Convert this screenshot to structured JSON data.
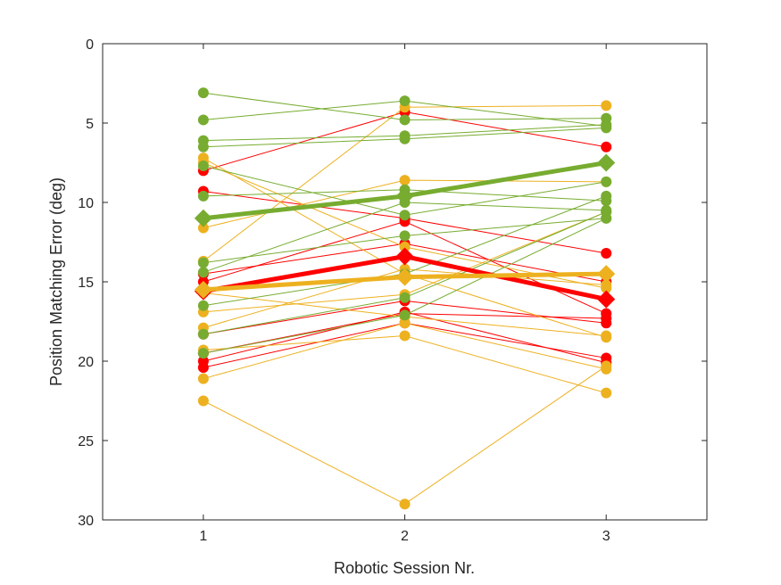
{
  "chart_data": {
    "type": "line",
    "title": "",
    "xlabel": "Robotic Session Nr.",
    "ylabel": "Position Matching Error (deg)",
    "xlim": [
      0.5,
      3.5
    ],
    "ylim": [
      0,
      30
    ],
    "y_reversed": true,
    "grid": false,
    "legend": "none",
    "x_ticks": [
      "1",
      "2",
      "3"
    ],
    "y_ticks": [
      "0",
      "5",
      "10",
      "15",
      "20",
      "25",
      "30"
    ],
    "x": [
      1,
      2,
      3
    ],
    "groups": [
      {
        "color": "#ff0000",
        "subjects": [
          [
            8.0,
            4.3,
            6.5
          ],
          [
            9.3,
            11.0,
            13.2
          ],
          [
            14.5,
            12.6,
            15.0
          ],
          [
            15.0,
            11.2,
            17.0
          ],
          [
            18.3,
            16.2,
            17.6
          ],
          [
            19.5,
            17.0,
            17.3
          ],
          [
            20.0,
            16.9,
            20.1
          ],
          [
            20.4,
            17.6,
            19.8
          ]
        ],
        "mean": [
          15.6,
          13.4,
          16.1
        ]
      },
      {
        "color": "#edb120",
        "subjects": [
          [
            7.2,
            14.5,
            18.5
          ],
          [
            7.5,
            12.8,
            15.4
          ],
          [
            11.6,
            8.6,
            8.7
          ],
          [
            13.7,
            4.0,
            3.9
          ],
          [
            16.9,
            15.8,
            10.6
          ],
          [
            17.9,
            14.2,
            15.2
          ],
          [
            19.3,
            18.4,
            22.0
          ],
          [
            21.1,
            17.6,
            20.5
          ],
          [
            15.7,
            17.2,
            18.4
          ],
          [
            22.5,
            29.0,
            20.3
          ]
        ],
        "mean": [
          15.5,
          14.7,
          14.5
        ]
      },
      {
        "color": "#77ac30",
        "subjects": [
          [
            3.1,
            4.8,
            4.7
          ],
          [
            4.8,
            3.6,
            5.2
          ],
          [
            6.1,
            5.8,
            5.1
          ],
          [
            6.5,
            6.0,
            5.3
          ],
          [
            7.7,
            10.8,
            8.7
          ],
          [
            9.6,
            9.2,
            9.9
          ],
          [
            13.8,
            12.1,
            11.0
          ],
          [
            14.4,
            10.0,
            10.5
          ],
          [
            16.5,
            14.5,
            9.6
          ],
          [
            18.3,
            16.0,
            10.6
          ],
          [
            19.5,
            17.1,
            11.0
          ]
        ],
        "mean": [
          11.0,
          9.6,
          7.5
        ]
      }
    ]
  }
}
